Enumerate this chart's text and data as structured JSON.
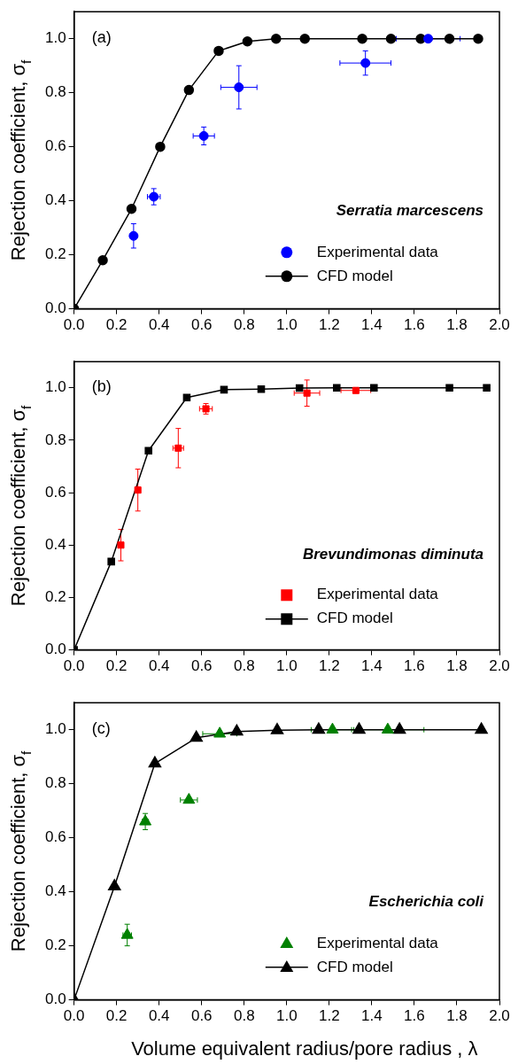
{
  "chart_data": [
    {
      "type": "scatter",
      "ylabel": "Rejection coefficient, σ$_{f}$",
      "xlim": [
        0,
        2.0
      ],
      "ylim": [
        0,
        1.1
      ],
      "xticks": [
        {
          "value": 0,
          "label": "0.0"
        },
        {
          "value": 0.2,
          "label": "0.2"
        },
        {
          "value": 0.4,
          "label": "0.4"
        },
        {
          "value": 0.6,
          "label": "0.6"
        },
        {
          "value": 0.8,
          "label": "0.8"
        },
        {
          "value": 1,
          "label": "1.0"
        },
        {
          "value": 1.2,
          "label": "1.2"
        },
        {
          "value": 1.4,
          "label": "1.4"
        },
        {
          "value": 1.6,
          "label": "1.6"
        },
        {
          "value": 1.8,
          "label": "1.8"
        },
        {
          "value": 2,
          "label": "2.0"
        }
      ],
      "yticks": [
        {
          "value": 0,
          "label": "0.0"
        },
        {
          "value": 0.2,
          "label": "0.2"
        },
        {
          "value": 0.4,
          "label": "0.4"
        },
        {
          "value": 0.6,
          "label": "0.6"
        },
        {
          "value": 0.8,
          "label": "0.8"
        },
        {
          "value": 1,
          "label": "1.0"
        }
      ],
      "annotations": [
        "(a)",
        "Serratia marcescens"
      ],
      "legend": "bottom right",
      "series": [
        {
          "name": "Experimental data",
          "type": "scatter",
          "marker": "circle",
          "color": "#0000ff",
          "x": [
            0.28,
            0.375,
            0.61,
            0.775,
            1.37,
            1.665
          ],
          "values": [
            0.27,
            0.415,
            0.64,
            0.82,
            0.91,
            1.0
          ],
          "errors": [
            0.045,
            0.03,
            0.033,
            0.08,
            0.045,
            null
          ],
          "xerrors": [
            0.015,
            0.03,
            0.05,
            0.085,
            0.12,
            0.15
          ]
        },
        {
          "name": "CFD model",
          "type": "line",
          "marker": "circle",
          "color": "#000000",
          "x": [
            0,
            0.135,
            0.27,
            0.405,
            0.54,
            0.68,
            0.815,
            0.95,
            1.085,
            1.355,
            1.49,
            1.63,
            1.765,
            1.9
          ],
          "values": [
            0,
            0.18,
            0.37,
            0.6,
            0.81,
            0.955,
            0.99,
            1.0,
            1.0,
            1.0,
            1.0,
            1.0,
            1.0,
            1.0
          ]
        }
      ]
    },
    {
      "type": "scatter",
      "ylabel": "Rejection coefficient, σ$_{f}$",
      "xlim": [
        0,
        2.0
      ],
      "ylim": [
        0,
        1.1
      ],
      "xticks": [
        {
          "value": 0,
          "label": "0.0"
        },
        {
          "value": 0.2,
          "label": "0.2"
        },
        {
          "value": 0.4,
          "label": "0.4"
        },
        {
          "value": 0.6,
          "label": "0.6"
        },
        {
          "value": 0.8,
          "label": "0.8"
        },
        {
          "value": 1,
          "label": "1.0"
        },
        {
          "value": 1.2,
          "label": "1.2"
        },
        {
          "value": 1.4,
          "label": "1.4"
        },
        {
          "value": 1.6,
          "label": "1.6"
        },
        {
          "value": 1.8,
          "label": "1.8"
        },
        {
          "value": 2,
          "label": "2.0"
        }
      ],
      "yticks": [
        {
          "value": 0,
          "label": "0.0"
        },
        {
          "value": 0.2,
          "label": "0.2"
        },
        {
          "value": 0.4,
          "label": "0.4"
        },
        {
          "value": 0.6,
          "label": "0.6"
        },
        {
          "value": 0.8,
          "label": "0.8"
        },
        {
          "value": 1,
          "label": "1.0"
        }
      ],
      "annotations": [
        "(b)",
        "Brevundimonas diminuta"
      ],
      "legend": "bottom right",
      "series": [
        {
          "name": "Experimental data",
          "type": "scatter",
          "marker": "square",
          "color": "#ff0000",
          "x": [
            0.22,
            0.3,
            0.49,
            0.62,
            1.095,
            1.325
          ],
          "values": [
            0.4,
            0.61,
            0.77,
            0.92,
            0.98,
            0.99
          ],
          "errors": [
            0.06,
            0.08,
            0.075,
            0.02,
            0.05,
            null
          ],
          "xerrors": [
            null,
            null,
            0.025,
            0.03,
            0.06,
            0.07
          ]
        },
        {
          "name": "CFD model",
          "type": "line",
          "marker": "square",
          "color": "#000000",
          "x": [
            0,
            0.175,
            0.35,
            0.53,
            0.705,
            0.88,
            1.06,
            1.235,
            1.41,
            1.765,
            1.94
          ],
          "values": [
            0,
            0.337,
            0.76,
            0.963,
            0.993,
            0.995,
            0.999,
            1.0,
            1.0,
            1.0,
            1.0
          ]
        }
      ]
    },
    {
      "type": "scatter",
      "xlabel": "Volume equivalent radius/pore radius , λ",
      "ylabel": "Rejection coefficient, σ$_{f}$",
      "xlim": [
        0,
        2.0
      ],
      "ylim": [
        0,
        1.1
      ],
      "xticks": [
        {
          "value": 0,
          "label": "0.0"
        },
        {
          "value": 0.2,
          "label": "0.2"
        },
        {
          "value": 0.4,
          "label": "0.4"
        },
        {
          "value": 0.6,
          "label": "0.6"
        },
        {
          "value": 0.8,
          "label": "0.8"
        },
        {
          "value": 1,
          "label": "1.0"
        },
        {
          "value": 1.2,
          "label": "1.2"
        },
        {
          "value": 1.4,
          "label": "1.4"
        },
        {
          "value": 1.6,
          "label": "1.6"
        },
        {
          "value": 1.8,
          "label": "1.8"
        },
        {
          "value": 2,
          "label": "2.0"
        }
      ],
      "yticks": [
        {
          "value": 0,
          "label": "0.0"
        },
        {
          "value": 0.2,
          "label": "0.2"
        },
        {
          "value": 0.4,
          "label": "0.4"
        },
        {
          "value": 0.6,
          "label": "0.6"
        },
        {
          "value": 0.8,
          "label": "0.8"
        },
        {
          "value": 1,
          "label": "1.0"
        }
      ],
      "annotations": [
        "(c)",
        "Escherichia coli"
      ],
      "legend": "bottom right",
      "series": [
        {
          "name": "Experimental data",
          "type": "scatter",
          "marker": "triangle",
          "color": "#008000",
          "x": [
            0.25,
            0.335,
            0.54,
            0.685,
            1.215,
            1.475
          ],
          "values": [
            0.24,
            0.66,
            0.74,
            0.985,
            1.0,
            1.0
          ],
          "errors": [
            0.04,
            0.03,
            null,
            null,
            null,
            null
          ],
          "xerrors": [
            0.02,
            0.015,
            0.04,
            0.08,
            0.1,
            0.17
          ]
        },
        {
          "name": "CFD model",
          "type": "line",
          "marker": "triangle",
          "color": "#000000",
          "x": [
            0,
            0.19,
            0.38,
            0.575,
            0.765,
            0.955,
            1.15,
            1.34,
            1.53,
            1.915
          ],
          "values": [
            0,
            0.42,
            0.875,
            0.97,
            0.993,
            0.998,
            1.0,
            1.0,
            1.0,
            1.0
          ]
        }
      ]
    }
  ]
}
